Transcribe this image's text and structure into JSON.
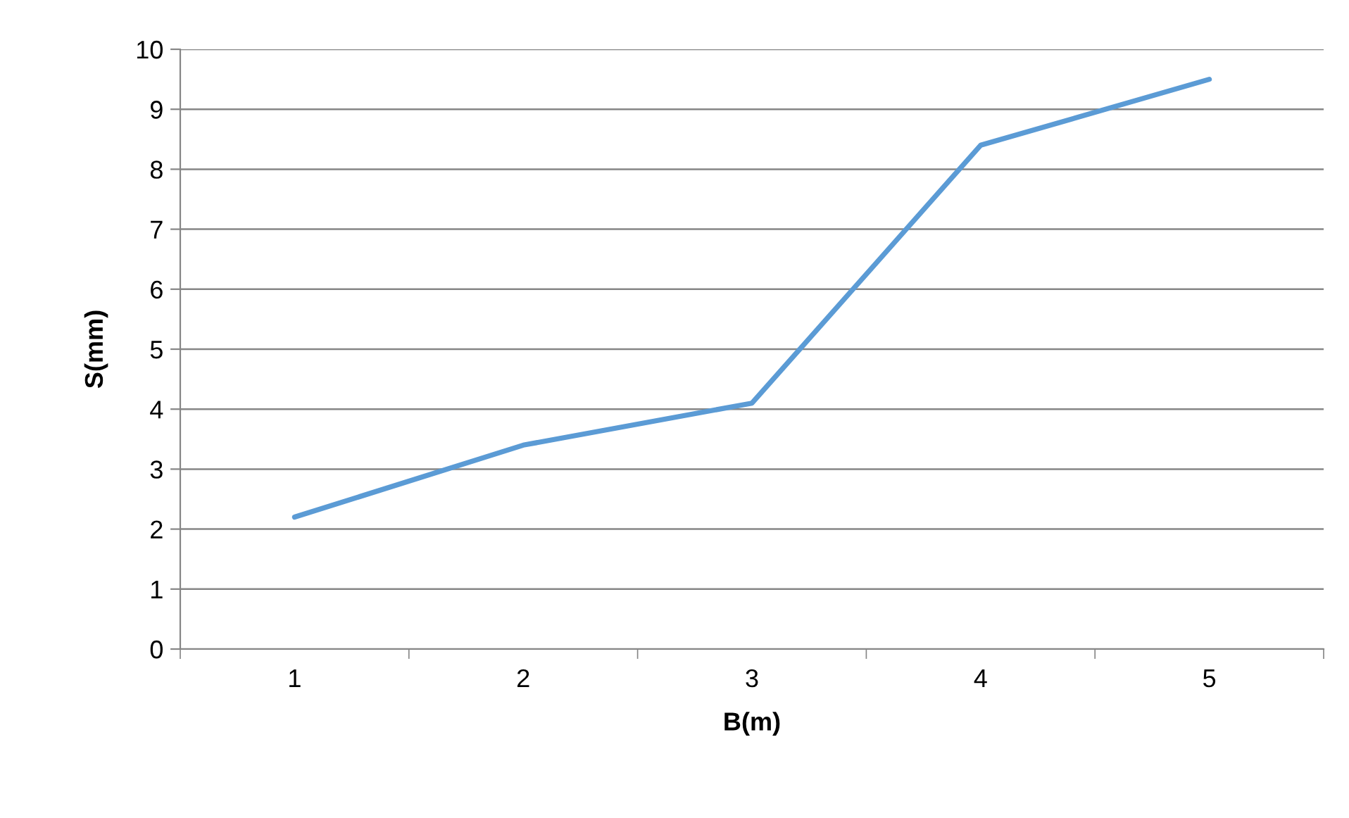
{
  "chart_data": {
    "type": "line",
    "xlabel": "B(m)",
    "ylabel": "S(mm)",
    "categories": [
      "1",
      "2",
      "3",
      "4",
      "5"
    ],
    "series": [
      {
        "color": "#5b9bd5",
        "values": [
          2.2,
          3.4,
          4.1,
          8.4,
          9.5
        ]
      }
    ],
    "ylim": [
      0,
      10
    ],
    "yticks": [
      0,
      1,
      2,
      3,
      4,
      5,
      6,
      7,
      8,
      9,
      10
    ],
    "grid": "y",
    "marker": "none",
    "line_style": "solid"
  }
}
